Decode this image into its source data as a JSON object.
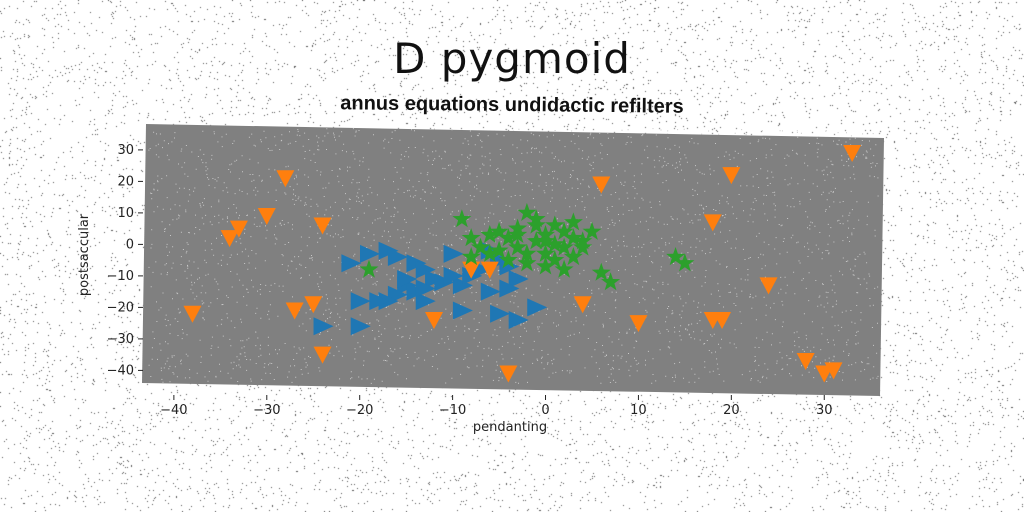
{
  "chart_data": {
    "type": "scatter",
    "title": "D pygmoid",
    "subtitle": "annus equations undidactic refilters",
    "xlabel": "pendanting",
    "ylabel": "postsaccular",
    "xlim": [
      -43,
      36
    ],
    "ylim": [
      -44,
      36
    ],
    "xticks": [
      -40,
      -30,
      -20,
      -10,
      0,
      10,
      20,
      30
    ],
    "yticks": [
      -40,
      -30,
      -20,
      -10,
      0,
      10,
      20,
      30
    ],
    "grid": false,
    "legend": "none",
    "series": [
      {
        "marker": "triangle-right",
        "color": "#1f77b4",
        "points": [
          [
            -21,
            -6
          ],
          [
            -19,
            -3
          ],
          [
            -17,
            -2
          ],
          [
            -16,
            -4
          ],
          [
            -14,
            -6
          ],
          [
            -13,
            -8
          ],
          [
            -12,
            -11
          ],
          [
            -11,
            -12
          ],
          [
            -10,
            -3
          ],
          [
            -9,
            -13
          ],
          [
            -8,
            -10
          ],
          [
            -7,
            -8
          ],
          [
            -6,
            -2
          ],
          [
            -5,
            -5
          ],
          [
            -4,
            -7
          ],
          [
            -3,
            -11
          ],
          [
            -6,
            -15
          ],
          [
            -4,
            -14
          ],
          [
            -15,
            -13
          ],
          [
            -14,
            -15
          ],
          [
            -16,
            -16
          ],
          [
            -17,
            -18
          ],
          [
            -18,
            -18
          ],
          [
            -20,
            -18
          ],
          [
            -13,
            -18
          ],
          [
            -9,
            -21
          ],
          [
            -5,
            -22
          ],
          [
            -3,
            -24
          ],
          [
            -1,
            -20
          ],
          [
            -20,
            -26
          ],
          [
            -24,
            -26
          ],
          [
            -10,
            -10
          ],
          [
            -15,
            -11
          ],
          [
            -13,
            -14
          ]
        ]
      },
      {
        "marker": "triangle-down",
        "color": "#ff7f0e",
        "points": [
          [
            -38,
            -22
          ],
          [
            -34,
            2
          ],
          [
            -33,
            5
          ],
          [
            -30,
            9
          ],
          [
            -28,
            21
          ],
          [
            -27,
            -21
          ],
          [
            -25,
            -19
          ],
          [
            -24,
            -35
          ],
          [
            -24,
            6
          ],
          [
            -12,
            -24
          ],
          [
            -8,
            -8
          ],
          [
            -6,
            -8
          ],
          [
            -4,
            -41
          ],
          [
            4,
            -19
          ],
          [
            6,
            19
          ],
          [
            10,
            -25
          ],
          [
            18,
            7
          ],
          [
            18,
            -24
          ],
          [
            19,
            -24
          ],
          [
            20,
            22
          ],
          [
            24,
            -13
          ],
          [
            28,
            -37
          ],
          [
            30,
            -41
          ],
          [
            31,
            -40
          ],
          [
            33,
            29
          ]
        ]
      },
      {
        "marker": "star",
        "color": "#2ca02c",
        "points": [
          [
            -19,
            -8
          ],
          [
            -9,
            8
          ],
          [
            -8,
            2
          ],
          [
            -7,
            -1
          ],
          [
            -6,
            -3
          ],
          [
            -5,
            4
          ],
          [
            -4,
            2
          ],
          [
            -3,
            -1
          ],
          [
            -3,
            5
          ],
          [
            -2,
            10
          ],
          [
            -2,
            -3
          ],
          [
            -1,
            1
          ],
          [
            -1,
            6
          ],
          [
            0,
            3
          ],
          [
            0,
            -3
          ],
          [
            1,
            0
          ],
          [
            1,
            -5
          ],
          [
            2,
            4
          ],
          [
            2,
            -1
          ],
          [
            3,
            2
          ],
          [
            3,
            -4
          ],
          [
            4,
            -1
          ],
          [
            5,
            4
          ],
          [
            6,
            -9
          ],
          [
            7,
            -12
          ],
          [
            -2,
            -6
          ],
          [
            0,
            -7
          ],
          [
            -1,
            8
          ],
          [
            -4,
            -5
          ],
          [
            1,
            6
          ],
          [
            -6,
            3
          ],
          [
            2,
            -8
          ],
          [
            4,
            1
          ],
          [
            -3,
            3
          ],
          [
            -5,
            -2
          ],
          [
            0,
            1
          ],
          [
            14,
            -4
          ],
          [
            15,
            -6
          ],
          [
            3,
            7
          ],
          [
            -8,
            -4
          ]
        ]
      }
    ]
  }
}
